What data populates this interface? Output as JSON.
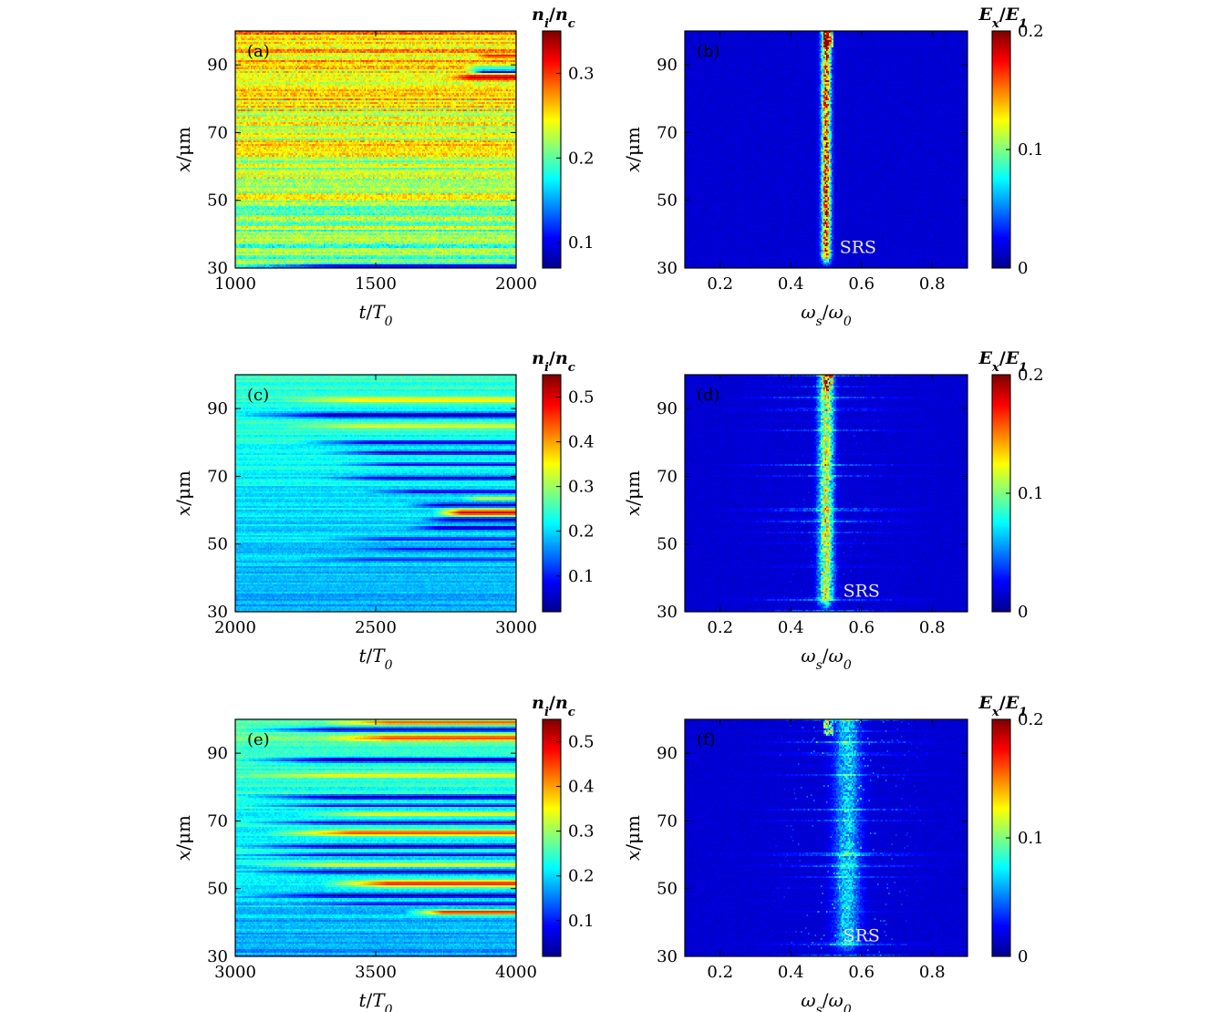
{
  "colors": {
    "colormap": [
      "#00008f",
      "#0000ff",
      "#00ffff",
      "#ffff00",
      "#ff0000",
      "#800000"
    ],
    "axis": "#000000",
    "annotation_light": "#e8e8e8",
    "annotation_dark": "#333333"
  },
  "chart_data": [
    {
      "id": "a",
      "type": "heatmap",
      "panel_label": "(a)",
      "xlabel": "t/T0",
      "ylabel": "x/μm",
      "xlim": [
        1000,
        2000
      ],
      "ylim": [
        30,
        100
      ],
      "xticks": [
        {
          "v": 1000,
          "t": "1000"
        },
        {
          "v": 1500,
          "t": "1500"
        },
        {
          "v": 2000,
          "t": "2000"
        }
      ],
      "yticks": [
        {
          "v": 30,
          "t": "30"
        },
        {
          "v": 50,
          "t": "50"
        },
        {
          "v": 70,
          "t": "70"
        },
        {
          "v": 90,
          "t": "90"
        }
      ],
      "colorbar": {
        "label": "ni/nc",
        "range": [
          0.07,
          0.35
        ],
        "ticks": [
          {
            "v": 0.1,
            "t": "0.1"
          },
          {
            "v": 0.2,
            "t": "0.2"
          },
          {
            "v": 0.3,
            "t": "0.3"
          }
        ]
      },
      "annotation": "",
      "pattern": {
        "kind": "density",
        "base_top": 0.265,
        "base_bottom": 0.205,
        "noise": 0.04,
        "bands": [
          {
            "x": 30.6,
            "w": 0.7,
            "v": 0.09,
            "t0": 1000,
            "t1": 2000
          },
          {
            "x": 88.0,
            "w": 0.5,
            "v": 0.08,
            "t0": 1820,
            "t1": 2000
          },
          {
            "x": 86.3,
            "w": 0.9,
            "v": 0.33,
            "t0": 1750,
            "t1": 2000
          },
          {
            "x": 89.2,
            "w": 0.5,
            "v": 0.17,
            "t0": 1800,
            "t1": 2000
          },
          {
            "x": 92.6,
            "w": 0.6,
            "v": 0.31,
            "t0": 1850,
            "t1": 2000
          }
        ]
      }
    },
    {
      "id": "b",
      "type": "heatmap",
      "panel_label": "(b)",
      "xlabel": "ωs/ω0",
      "ylabel": "x/μm",
      "xlim": [
        0.1,
        0.9
      ],
      "ylim": [
        30,
        100
      ],
      "xticks": [
        {
          "v": 0.2,
          "t": "0.2"
        },
        {
          "v": 0.4,
          "t": "0.4"
        },
        {
          "v": 0.6,
          "t": "0.6"
        },
        {
          "v": 0.8,
          "t": "0.8"
        }
      ],
      "yticks": [
        {
          "v": 30,
          "t": "30"
        },
        {
          "v": 50,
          "t": "50"
        },
        {
          "v": 70,
          "t": "70"
        },
        {
          "v": 90,
          "t": "90"
        }
      ],
      "colorbar": {
        "label": "Ex/E1",
        "range": [
          0,
          0.2
        ],
        "ticks": [
          {
            "v": 0,
            "t": "0"
          },
          {
            "v": 0.1,
            "t": "0.1"
          },
          {
            "v": 0.2,
            "t": "0.2"
          }
        ]
      },
      "annotation": "SRS",
      "annotation_pos": {
        "x": 0.59,
        "y": 36
      },
      "pattern": {
        "kind": "spectrum",
        "center": 0.5,
        "width": 0.013,
        "amp": 0.15,
        "scatter": 0.0,
        "stripes": false
      }
    },
    {
      "id": "c",
      "type": "heatmap",
      "panel_label": "(c)",
      "xlabel": "t/T0",
      "ylabel": "x/μm",
      "xlim": [
        2000,
        3000
      ],
      "ylim": [
        30,
        100
      ],
      "xticks": [
        {
          "v": 2000,
          "t": "2000"
        },
        {
          "v": 2500,
          "t": "2500"
        },
        {
          "v": 3000,
          "t": "3000"
        }
      ],
      "yticks": [
        {
          "v": 30,
          "t": "30"
        },
        {
          "v": 50,
          "t": "50"
        },
        {
          "v": 70,
          "t": "70"
        },
        {
          "v": 90,
          "t": "90"
        }
      ],
      "colorbar": {
        "label": "ni/nc",
        "range": [
          0.02,
          0.55
        ],
        "ticks": [
          {
            "v": 0.1,
            "t": "0.1"
          },
          {
            "v": 0.2,
            "t": "0.2"
          },
          {
            "v": 0.3,
            "t": "0.3"
          },
          {
            "v": 0.4,
            "t": "0.4"
          },
          {
            "v": 0.5,
            "t": "0.5"
          }
        ]
      },
      "annotation": "",
      "pattern": {
        "kind": "density",
        "base_top": 0.25,
        "base_bottom": 0.17,
        "noise": 0.03,
        "bands": [
          {
            "x": 88.0,
            "w": 0.8,
            "v": 0.03,
            "t0": 2000,
            "t1": 3000
          },
          {
            "x": 92.5,
            "w": 0.8,
            "v": 0.37,
            "t0": 2150,
            "t1": 3000
          },
          {
            "x": 84.8,
            "w": 0.7,
            "v": 0.34,
            "t0": 2150,
            "t1": 3000
          },
          {
            "x": 80.0,
            "w": 0.6,
            "v": 0.05,
            "t0": 2200,
            "t1": 3000
          },
          {
            "x": 77.0,
            "w": 0.6,
            "v": 0.04,
            "t0": 2300,
            "t1": 3000
          },
          {
            "x": 73.5,
            "w": 0.5,
            "v": 0.06,
            "t0": 2350,
            "t1": 3000
          },
          {
            "x": 69.5,
            "w": 0.6,
            "v": 0.04,
            "t0": 2300,
            "t1": 3000
          },
          {
            "x": 65.5,
            "w": 0.5,
            "v": 0.06,
            "t0": 2450,
            "t1": 3000
          },
          {
            "x": 63.5,
            "w": 0.5,
            "v": 0.35,
            "t0": 2800,
            "t1": 3000
          },
          {
            "x": 61.5,
            "w": 0.6,
            "v": 0.04,
            "t0": 2600,
            "t1": 3000
          },
          {
            "x": 59.3,
            "w": 1.0,
            "v": 0.5,
            "t0": 2700,
            "t1": 3000
          },
          {
            "x": 57.2,
            "w": 0.6,
            "v": 0.03,
            "t0": 2650,
            "t1": 3000
          },
          {
            "x": 54.8,
            "w": 0.6,
            "v": 0.04,
            "t0": 2600,
            "t1": 3000
          },
          {
            "x": 51.5,
            "w": 0.5,
            "v": 0.08,
            "t0": 2300,
            "t1": 3000
          },
          {
            "x": 48.5,
            "w": 0.5,
            "v": 0.09,
            "t0": 2400,
            "t1": 3000
          },
          {
            "x": 45.5,
            "w": 0.5,
            "v": 0.1,
            "t0": 2200,
            "t1": 3000
          }
        ]
      }
    },
    {
      "id": "d",
      "type": "heatmap",
      "panel_label": "(d)",
      "xlabel": "ωs/ω0",
      "ylabel": "x/μm",
      "xlim": [
        0.1,
        0.9
      ],
      "ylim": [
        30,
        100
      ],
      "xticks": [
        {
          "v": 0.2,
          "t": "0.2"
        },
        {
          "v": 0.4,
          "t": "0.4"
        },
        {
          "v": 0.6,
          "t": "0.6"
        },
        {
          "v": 0.8,
          "t": "0.8"
        }
      ],
      "yticks": [
        {
          "v": 30,
          "t": "30"
        },
        {
          "v": 50,
          "t": "50"
        },
        {
          "v": 70,
          "t": "70"
        },
        {
          "v": 90,
          "t": "90"
        }
      ],
      "colorbar": {
        "label": "Ex/E1",
        "range": [
          0,
          0.2
        ],
        "ticks": [
          {
            "v": 0,
            "t": "0"
          },
          {
            "v": 0.1,
            "t": "0.1"
          },
          {
            "v": 0.2,
            "t": "0.2"
          }
        ]
      },
      "annotation": "SRS",
      "annotation_pos": {
        "x": 0.6,
        "y": 36
      },
      "pattern": {
        "kind": "spectrum",
        "center": 0.5,
        "width": 0.02,
        "amp": 0.1,
        "scatter": 0.015,
        "stripes": true
      }
    },
    {
      "id": "e",
      "type": "heatmap",
      "panel_label": "(e)",
      "xlabel": "t/T0",
      "ylabel": "x/μm",
      "xlim": [
        3000,
        4000
      ],
      "ylim": [
        30,
        100
      ],
      "xticks": [
        {
          "v": 3000,
          "t": "3000"
        },
        {
          "v": 3500,
          "t": "3500"
        },
        {
          "v": 4000,
          "t": "4000"
        }
      ],
      "yticks": [
        {
          "v": 30,
          "t": "30"
        },
        {
          "v": 50,
          "t": "50"
        },
        {
          "v": 70,
          "t": "70"
        },
        {
          "v": 90,
          "t": "90"
        }
      ],
      "colorbar": {
        "label": "ni/nc",
        "range": [
          0.02,
          0.55
        ],
        "ticks": [
          {
            "v": 0.1,
            "t": "0.1"
          },
          {
            "v": 0.2,
            "t": "0.2"
          },
          {
            "v": 0.3,
            "t": "0.3"
          },
          {
            "v": 0.4,
            "t": "0.4"
          },
          {
            "v": 0.5,
            "t": "0.5"
          }
        ]
      },
      "annotation": "",
      "pattern": {
        "kind": "density",
        "base_top": 0.27,
        "base_bottom": 0.17,
        "noise": 0.035,
        "bands": [
          {
            "x": 99.0,
            "w": 0.6,
            "v": 0.45,
            "t0": 3300,
            "t1": 4000
          },
          {
            "x": 97.0,
            "w": 0.7,
            "v": 0.04,
            "t0": 3000,
            "t1": 4000
          },
          {
            "x": 94.5,
            "w": 0.9,
            "v": 0.45,
            "t0": 3300,
            "t1": 4000
          },
          {
            "x": 88.0,
            "w": 0.8,
            "v": 0.03,
            "t0": 3000,
            "t1": 4000
          },
          {
            "x": 83.5,
            "w": 0.6,
            "v": 0.36,
            "t0": 3000,
            "t1": 4000
          },
          {
            "x": 77.0,
            "w": 0.7,
            "v": 0.04,
            "t0": 3000,
            "t1": 4000
          },
          {
            "x": 74.5,
            "w": 0.5,
            "v": 0.06,
            "t0": 3000,
            "t1": 4000
          },
          {
            "x": 72.0,
            "w": 0.6,
            "v": 0.36,
            "t0": 3200,
            "t1": 4000
          },
          {
            "x": 69.5,
            "w": 0.6,
            "v": 0.05,
            "t0": 3000,
            "t1": 4000
          },
          {
            "x": 66.5,
            "w": 0.9,
            "v": 0.45,
            "t0": 3100,
            "t1": 4000
          },
          {
            "x": 62.5,
            "w": 0.6,
            "v": 0.03,
            "t0": 3000,
            "t1": 4000
          },
          {
            "x": 60.0,
            "w": 0.5,
            "v": 0.05,
            "t0": 3000,
            "t1": 4000
          },
          {
            "x": 57.0,
            "w": 0.6,
            "v": 0.36,
            "t0": 3000,
            "t1": 4000
          },
          {
            "x": 55.0,
            "w": 0.6,
            "v": 0.03,
            "t0": 3000,
            "t1": 4000
          },
          {
            "x": 51.5,
            "w": 1.0,
            "v": 0.47,
            "t0": 3300,
            "t1": 4000
          },
          {
            "x": 48.0,
            "w": 0.6,
            "v": 0.03,
            "t0": 3000,
            "t1": 4000
          },
          {
            "x": 45.5,
            "w": 0.5,
            "v": 0.08,
            "t0": 3200,
            "t1": 4000
          },
          {
            "x": 43.0,
            "w": 0.7,
            "v": 0.48,
            "t0": 3600,
            "t1": 4000
          }
        ]
      }
    },
    {
      "id": "f",
      "type": "heatmap",
      "panel_label": "(f)",
      "xlabel": "ωs/ω0",
      "ylabel": "x/μm",
      "xlim": [
        0.1,
        0.9
      ],
      "ylim": [
        30,
        100
      ],
      "xticks": [
        {
          "v": 0.2,
          "t": "0.2"
        },
        {
          "v": 0.4,
          "t": "0.4"
        },
        {
          "v": 0.6,
          "t": "0.6"
        },
        {
          "v": 0.8,
          "t": "0.8"
        }
      ],
      "yticks": [
        {
          "v": 30,
          "t": "30"
        },
        {
          "v": 50,
          "t": "50"
        },
        {
          "v": 70,
          "t": "70"
        },
        {
          "v": 90,
          "t": "90"
        }
      ],
      "colorbar": {
        "label": "Ex/E1",
        "range": [
          0,
          0.2
        ],
        "ticks": [
          {
            "v": 0,
            "t": "0"
          },
          {
            "v": 0.1,
            "t": "0.1"
          },
          {
            "v": 0.2,
            "t": "0.2"
          }
        ]
      },
      "annotation": "SRS",
      "annotation_pos": {
        "x": 0.6,
        "y": 36
      },
      "pattern": {
        "kind": "spectrum",
        "center": 0.56,
        "width": 0.035,
        "amp": 0.05,
        "scatter": 0.04,
        "stripes": true
      }
    }
  ]
}
